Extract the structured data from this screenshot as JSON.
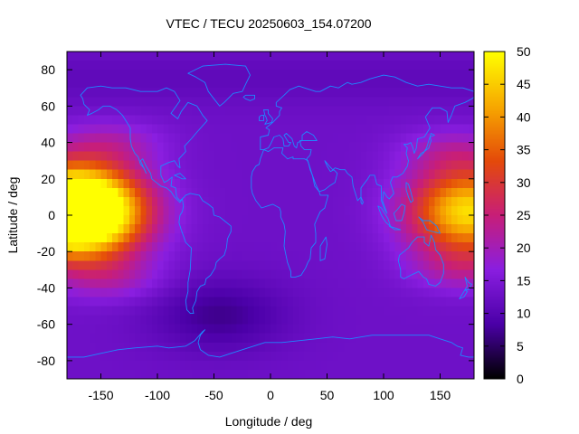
{
  "chart_data": {
    "type": "heatmap",
    "title": "VTEC / TECU 20250603_154.07200",
    "xlabel": "Longitude / deg",
    "ylabel": "Latitude / deg",
    "xlim": [
      -180,
      180
    ],
    "ylim": [
      -90,
      90
    ],
    "x_ticks": [
      -150,
      -100,
      -50,
      0,
      50,
      100,
      150
    ],
    "y_ticks": [
      -80,
      -60,
      -40,
      -20,
      0,
      20,
      40,
      60,
      80
    ],
    "colorbar": {
      "range": [
        0,
        50
      ],
      "ticks": [
        0,
        5,
        10,
        15,
        20,
        25,
        30,
        35,
        40,
        45,
        50
      ],
      "palette": [
        "#000000",
        "#4b00a8",
        "#8a1ee0",
        "#c81e78",
        "#e44a0a",
        "#f7a800",
        "#ffff00"
      ]
    },
    "grid": false,
    "overlay": "coastlines",
    "features": {
      "background_tec": 13,
      "equatorial_peak_west": {
        "lon": -160,
        "lat": 2,
        "tec": 49
      },
      "equatorial_peak_east": {
        "lon": 175,
        "lat": 2,
        "tec": 47
      },
      "crest_band_lat": [
        -30,
        30
      ],
      "low_region": {
        "lon": -45,
        "lat": -55,
        "tec": 7
      }
    }
  },
  "colors": {
    "coastline": "#1e88ff",
    "frame": "#000000"
  }
}
